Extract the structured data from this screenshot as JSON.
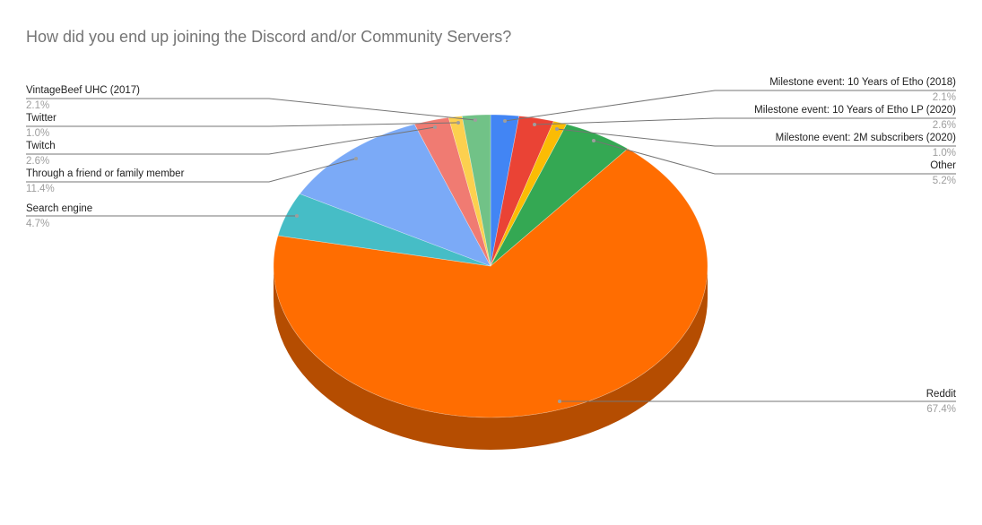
{
  "chart_data": {
    "type": "pie",
    "title": "How did you end up joining the Discord and/or Community Servers?",
    "is_3d": true,
    "start_angle_deg": 0,
    "direction": "clockwise",
    "slices": [
      {
        "label": "Milestone event: 10 Years of Etho (2018)",
        "value": 2.1,
        "display": "2.1%",
        "color": "#4285f4"
      },
      {
        "label": "Milestone event: 10 Years of Etho LP (2020)",
        "value": 2.6,
        "display": "2.6%",
        "color": "#ea4335"
      },
      {
        "label": "Milestone event: 2M subscribers (2020)",
        "value": 1.0,
        "display": "1.0%",
        "color": "#fbbc04"
      },
      {
        "label": "Other",
        "value": 5.2,
        "display": "5.2%",
        "color": "#34a853"
      },
      {
        "label": "Reddit",
        "value": 67.4,
        "display": "67.4%",
        "color": "#ff6d01"
      },
      {
        "label": "Search engine",
        "value": 4.7,
        "display": "4.7%",
        "color": "#46bdc6"
      },
      {
        "label": "Through a friend or family member",
        "value": 11.4,
        "display": "11.4%",
        "color": "#7baaf7"
      },
      {
        "label": "Twitch",
        "value": 2.6,
        "display": "2.6%",
        "color": "#f07b72"
      },
      {
        "label": "Twitter",
        "value": 1.0,
        "display": "1.0%",
        "color": "#fcd04f"
      },
      {
        "label": "VintageBeef UHC (2017)",
        "value": 2.1,
        "display": "2.1%",
        "color": "#71c287"
      }
    ],
    "legend_position": "labeled (callout lines)"
  },
  "labels": {
    "vintagebeef": {
      "name": "VintageBeef UHC (2017)",
      "pct": "2.1%"
    },
    "twitter": {
      "name": "Twitter",
      "pct": "1.0%"
    },
    "twitch": {
      "name": "Twitch",
      "pct": "2.6%"
    },
    "friend": {
      "name": "Through a friend or family member",
      "pct": "11.4%"
    },
    "search": {
      "name": "Search engine",
      "pct": "4.7%"
    },
    "m2018": {
      "name": "Milestone event: 10 Years of Etho (2018)",
      "pct": "2.1%"
    },
    "mlp": {
      "name": "Milestone event: 10 Years of Etho LP (2020)",
      "pct": "2.6%"
    },
    "m2m": {
      "name": "Milestone event: 2M subscribers (2020)",
      "pct": "1.0%"
    },
    "other": {
      "name": "Other",
      "pct": "5.2%"
    },
    "reddit": {
      "name": "Reddit",
      "pct": "67.4%"
    }
  }
}
